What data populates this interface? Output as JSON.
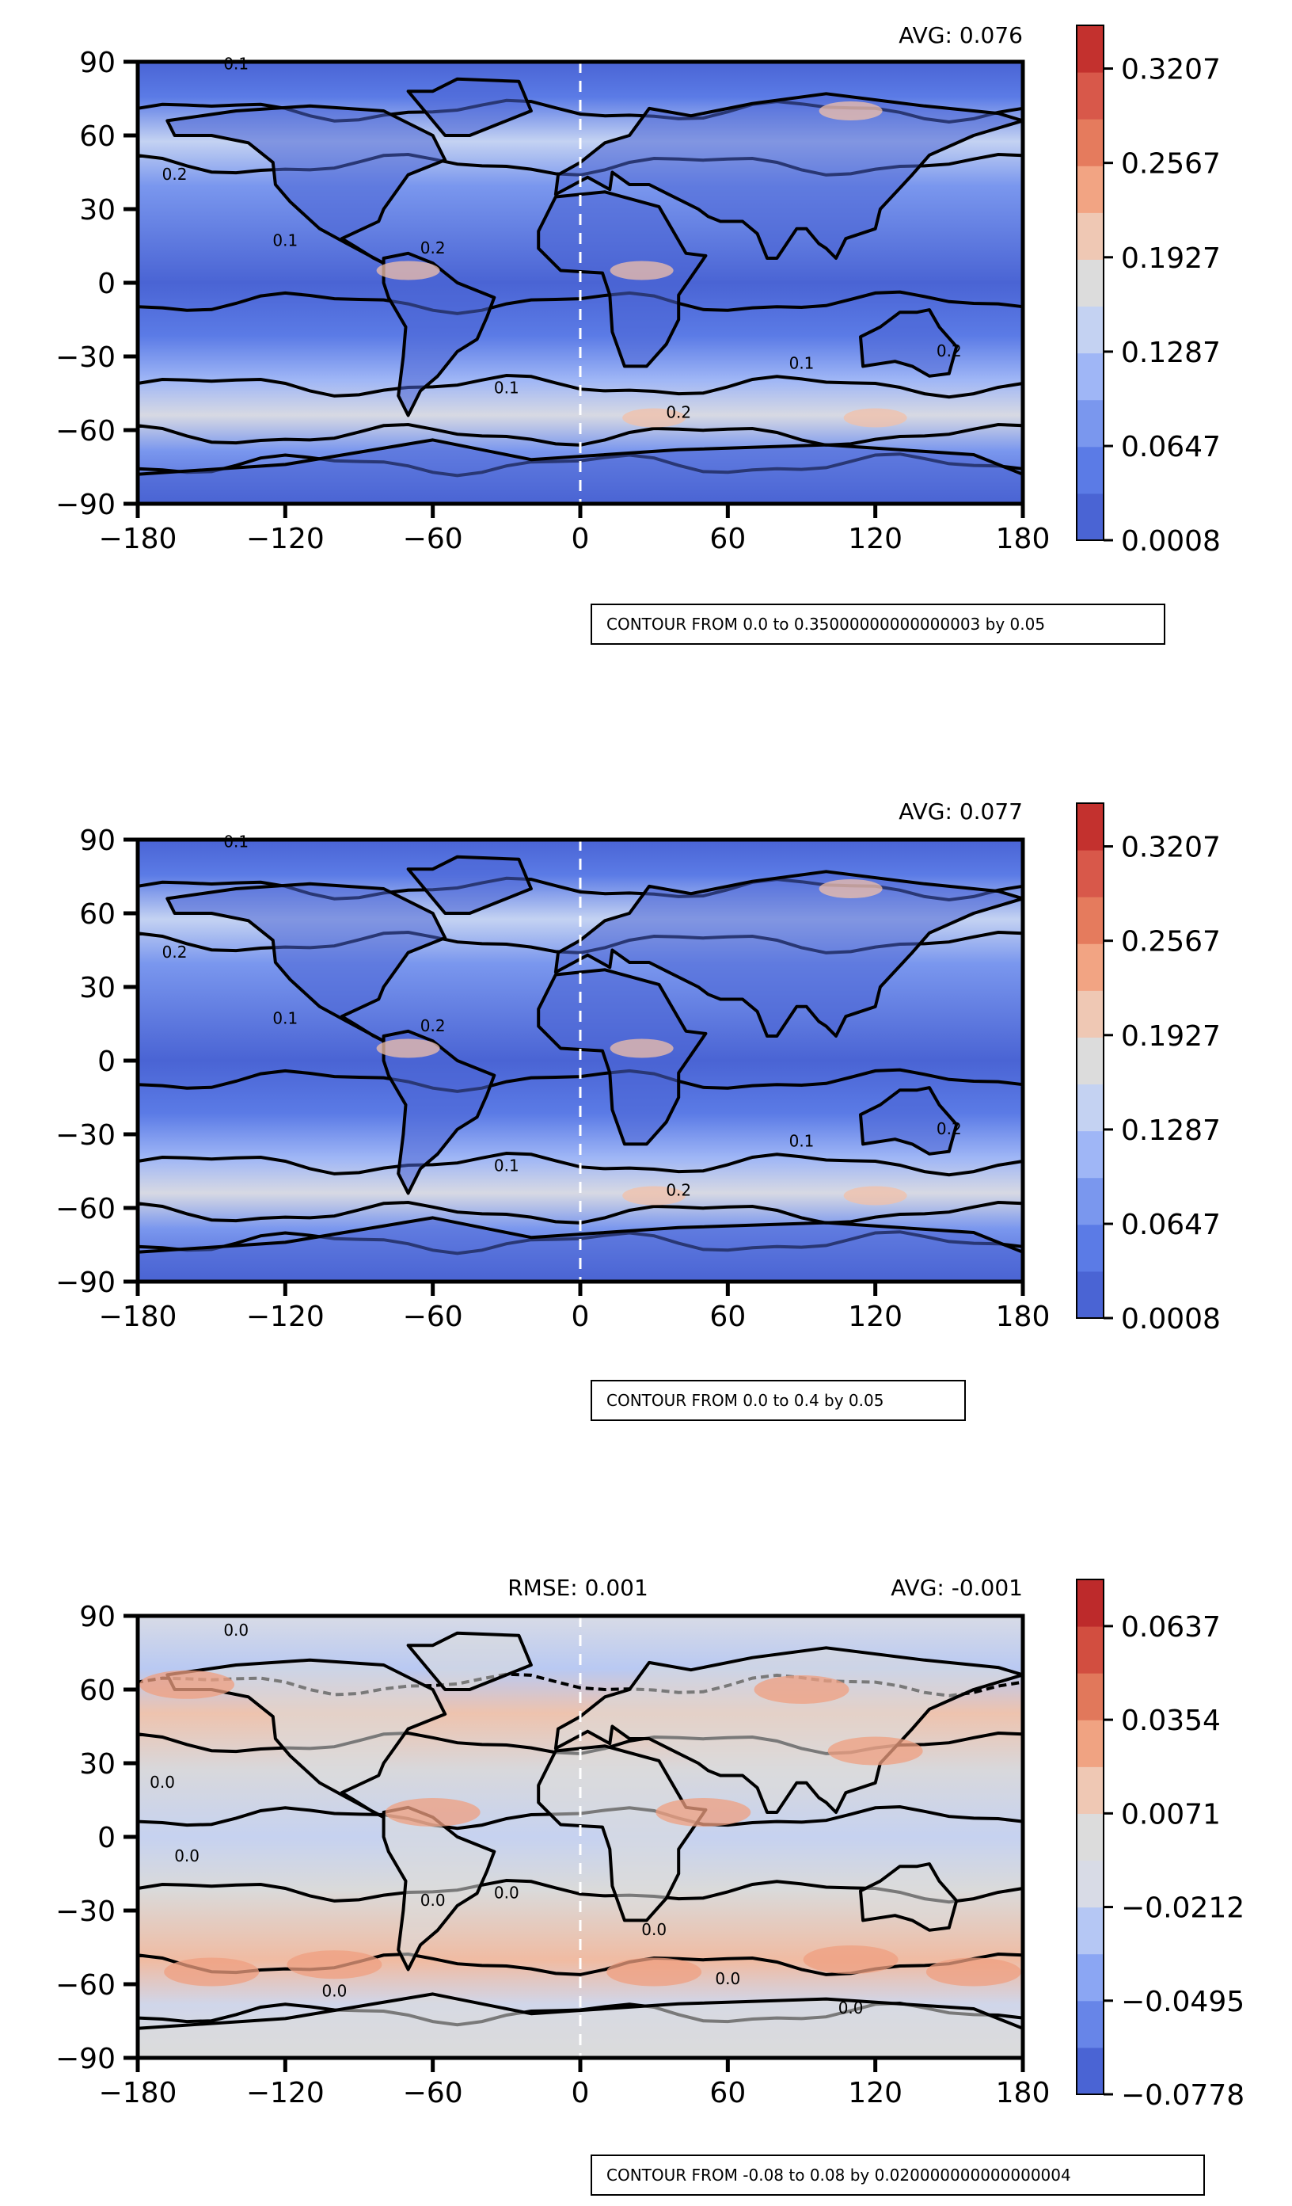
{
  "panels": [
    {
      "avg": "AVG: 0.076",
      "rmse": "",
      "caption": "CONTOUR FROM 0.0 to 0.35000000000000003 by 0.05",
      "colorbar_ticks": [
        "0.0008",
        "0.0647",
        "0.1287",
        "0.1927",
        "0.2567",
        "0.3207"
      ]
    },
    {
      "avg": "AVG: 0.077",
      "rmse": "",
      "caption": "CONTOUR FROM 0.0 to 0.4 by 0.05",
      "colorbar_ticks": [
        "0.0008",
        "0.0647",
        "0.1287",
        "0.1927",
        "0.2567",
        "0.3207"
      ]
    },
    {
      "avg": "AVG: -0.001",
      "rmse": "RMSE: 0.001",
      "caption": "CONTOUR FROM -0.08 to 0.08 by 0.020000000000000004",
      "colorbar_ticks": [
        "−0.0778",
        "−0.0495",
        "−0.0212",
        "0.0071",
        "0.0354",
        "0.0637"
      ]
    }
  ],
  "chart_data": [
    {
      "type": "heatmap",
      "projection": "lon-lat",
      "xlim": [
        -180,
        180
      ],
      "ylim": [
        -90,
        90
      ],
      "x_ticks": [
        "−180",
        "−120",
        "−60",
        "0",
        "60",
        "120",
        "180"
      ],
      "y_ticks": [
        "90",
        "60",
        "30",
        "0",
        "−30",
        "−60",
        "−90"
      ],
      "colormap": "coolwarm",
      "colorbar_range": [
        0.0008,
        0.35
      ],
      "contour_labels": [
        "0.1",
        "0.2"
      ],
      "avg": 0.076
    },
    {
      "type": "heatmap",
      "projection": "lon-lat",
      "xlim": [
        -180,
        180
      ],
      "ylim": [
        -90,
        90
      ],
      "x_ticks": [
        "−180",
        "−120",
        "−60",
        "0",
        "60",
        "120",
        "180"
      ],
      "y_ticks": [
        "90",
        "60",
        "30",
        "0",
        "−30",
        "−60",
        "−90"
      ],
      "colormap": "coolwarm",
      "colorbar_range": [
        0.0008,
        0.35
      ],
      "contour_labels": [
        "0.1",
        "0.2"
      ],
      "avg": 0.077
    },
    {
      "type": "heatmap",
      "projection": "lon-lat",
      "xlim": [
        -180,
        180
      ],
      "ylim": [
        -90,
        90
      ],
      "x_ticks": [
        "−180",
        "−120",
        "−60",
        "0",
        "60",
        "120",
        "180"
      ],
      "y_ticks": [
        "90",
        "60",
        "30",
        "0",
        "−30",
        "−60",
        "−90"
      ],
      "colormap": "coolwarm",
      "colorbar_range": [
        -0.0778,
        0.0778
      ],
      "contour_labels": [
        "0.0"
      ],
      "avg": -0.001,
      "rmse": 0.001
    }
  ],
  "colors": {
    "top_cmap": [
      "#4a64d4",
      "#5b7be6",
      "#7a97ee",
      "#9fb6f6",
      "#c4d2f2",
      "#dcdcdc",
      "#efc8b4",
      "#f2a483",
      "#e57b5d",
      "#d8584a",
      "#c3312e"
    ],
    "diff_cmap": [
      "#4a64d4",
      "#6785e8",
      "#8ba6f3",
      "#b5c7f4",
      "#d8dbe6",
      "#dcdcdc",
      "#efc8b4",
      "#f0a382",
      "#e1785b",
      "#d24e40",
      "#bd2a2b"
    ]
  }
}
